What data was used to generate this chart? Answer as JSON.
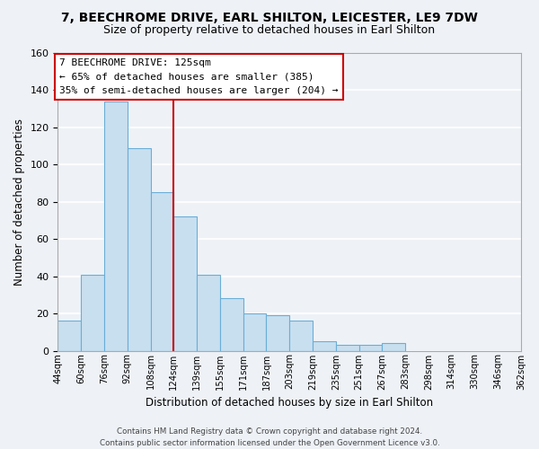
{
  "title1": "7, BEECHROME DRIVE, EARL SHILTON, LEICESTER, LE9 7DW",
  "title2": "Size of property relative to detached houses in Earl Shilton",
  "xlabel": "Distribution of detached houses by size in Earl Shilton",
  "ylabel": "Number of detached properties",
  "bar_color": "#c8dff0",
  "bar_edge_color": "#6aaed6",
  "bin_labels": [
    "44sqm",
    "60sqm",
    "76sqm",
    "92sqm",
    "108sqm",
    "124sqm",
    "139sqm",
    "155sqm",
    "171sqm",
    "187sqm",
    "203sqm",
    "219sqm",
    "235sqm",
    "251sqm",
    "267sqm",
    "283sqm",
    "298sqm",
    "314sqm",
    "330sqm",
    "346sqm",
    "362sqm"
  ],
  "bar_heights": [
    16,
    41,
    134,
    109,
    85,
    72,
    41,
    28,
    20,
    19,
    16,
    5,
    3,
    3,
    4,
    0,
    0,
    0,
    0,
    0
  ],
  "vline_x": 5,
  "vline_color": "#cc0000",
  "annotation_title": "7 BEECHROME DRIVE: 125sqm",
  "annotation_line1": "← 65% of detached houses are smaller (385)",
  "annotation_line2": "35% of semi-detached houses are larger (204) →",
  "annotation_box_color": "#ffffff",
  "annotation_box_edge": "#cc0000",
  "ylim": [
    0,
    160
  ],
  "yticks": [
    0,
    20,
    40,
    60,
    80,
    100,
    120,
    140,
    160
  ],
  "footer": "Contains HM Land Registry data © Crown copyright and database right 2024.\nContains public sector information licensed under the Open Government Licence v3.0.",
  "bg_color": "#eef2f7",
  "grid_color": "#ffffff"
}
